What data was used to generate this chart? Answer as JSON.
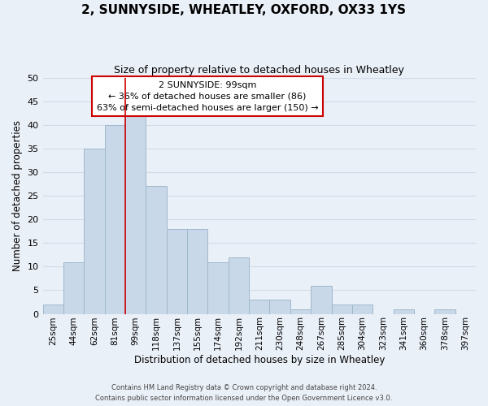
{
  "title": "2, SUNNYSIDE, WHEATLEY, OXFORD, OX33 1YS",
  "subtitle": "Size of property relative to detached houses in Wheatley",
  "xlabel": "Distribution of detached houses by size in Wheatley",
  "ylabel": "Number of detached properties",
  "bar_labels": [
    "25sqm",
    "44sqm",
    "62sqm",
    "81sqm",
    "99sqm",
    "118sqm",
    "137sqm",
    "155sqm",
    "174sqm",
    "192sqm",
    "211sqm",
    "230sqm",
    "248sqm",
    "267sqm",
    "285sqm",
    "304sqm",
    "323sqm",
    "341sqm",
    "360sqm",
    "378sqm",
    "397sqm"
  ],
  "bar_values": [
    2,
    11,
    35,
    40,
    42,
    27,
    18,
    18,
    11,
    12,
    3,
    3,
    1,
    6,
    2,
    2,
    0,
    1,
    0,
    1,
    0
  ],
  "bar_color": "#c8d8e8",
  "bar_edge_color": "#a0b8cc",
  "highlight_index": 4,
  "highlight_line_color": "#cc0000",
  "ylim": [
    0,
    50
  ],
  "yticks": [
    0,
    5,
    10,
    15,
    20,
    25,
    30,
    35,
    40,
    45,
    50
  ],
  "annotation_title": "2 SUNNYSIDE: 99sqm",
  "annotation_line1": "← 36% of detached houses are smaller (86)",
  "annotation_line2": "63% of semi-detached houses are larger (150) →",
  "annotation_box_color": "#ffffff",
  "annotation_box_edge": "#cc0000",
  "footer1": "Contains HM Land Registry data © Crown copyright and database right 2024.",
  "footer2": "Contains public sector information licensed under the Open Government Licence v3.0.",
  "grid_color": "#d0dce8",
  "background_color": "#eaf0f8"
}
